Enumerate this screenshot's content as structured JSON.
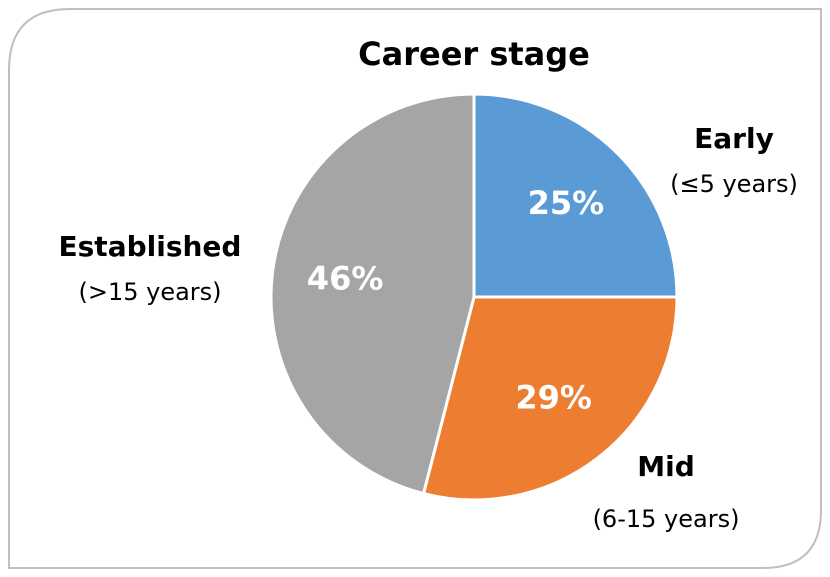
{
  "chart_data": {
    "type": "pie",
    "title": "Career stage",
    "categories": [
      "Early",
      "Mid",
      "Established"
    ],
    "category_details": [
      "(≤5 years)",
      "(6-15 years)",
      "(>15 years)"
    ],
    "values": [
      25,
      29,
      46
    ],
    "value_labels": [
      "25%",
      "29%",
      "46%"
    ],
    "colors": [
      "#5b9bd5",
      "#ed7d31",
      "#a5a5a5"
    ]
  }
}
